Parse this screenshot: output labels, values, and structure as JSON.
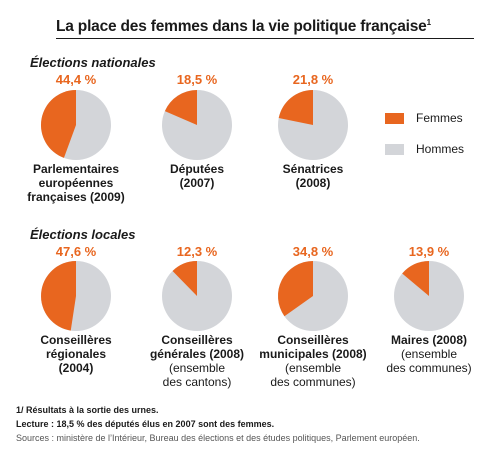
{
  "title": "La place des femmes dans la vie politique française",
  "title_note": "1",
  "sections": {
    "national": "Élections nationales",
    "local": "Élections locales"
  },
  "legend": [
    {
      "label": "Femmes",
      "color": "#e8661f"
    },
    {
      "label": "Hommes",
      "color": "#d3d5d9"
    }
  ],
  "chart_data": {
    "type": "pie",
    "unit": "%",
    "series_names": [
      "Femmes",
      "Hommes"
    ],
    "groups": [
      {
        "section": "Élections nationales",
        "pies": [
          {
            "label": "Parlementaires européennes françaises (2009)",
            "caption_lines": [
              "Parlementaires",
              "européennes",
              "françaises (2009)"
            ],
            "sub_lines": [],
            "value_label": "44,4 %",
            "femmes": 44.4,
            "hommes": 55.6
          },
          {
            "label": "Députées (2007)",
            "caption_lines": [
              "Députées",
              "(2007)"
            ],
            "sub_lines": [],
            "value_label": "18,5 %",
            "femmes": 18.5,
            "hommes": 81.5
          },
          {
            "label": "Sénatrices (2008)",
            "caption_lines": [
              "Sénatrices",
              "(2008)"
            ],
            "sub_lines": [],
            "value_label": "21,8 %",
            "femmes": 21.8,
            "hommes": 78.2
          }
        ]
      },
      {
        "section": "Élections locales",
        "pies": [
          {
            "label": "Conseillères régionales (2004)",
            "caption_lines": [
              "Conseillères",
              "régionales",
              "(2004)"
            ],
            "sub_lines": [],
            "value_label": "47,6 %",
            "femmes": 47.6,
            "hommes": 52.4
          },
          {
            "label": "Conseillères générales (2008) (ensemble des cantons)",
            "caption_lines": [
              "Conseillères",
              "générales (2008)"
            ],
            "sub_lines": [
              "(ensemble",
              "des cantons)"
            ],
            "value_label": "12,3 %",
            "femmes": 12.3,
            "hommes": 87.7
          },
          {
            "label": "Conseillères municipales (2008) (ensemble des communes)",
            "caption_lines": [
              "Conseillères",
              "municipales (2008)"
            ],
            "sub_lines": [
              "(ensemble",
              "des communes)"
            ],
            "value_label": "34,8 %",
            "femmes": 34.8,
            "hommes": 65.2
          },
          {
            "label": "Maires (2008) (ensemble des communes)",
            "caption_lines": [
              "Maires (2008)"
            ],
            "sub_lines": [
              "(ensemble",
              "des communes)"
            ],
            "value_label": "13,9 %",
            "femmes": 13.9,
            "hommes": 86.1
          }
        ]
      }
    ]
  },
  "footnotes": {
    "note1": "1/ Résultats à la sortie des urnes.",
    "reading": "Lecture : 18,5 % des députés élus en 2007 sont des femmes.",
    "sources": "Sources : ministère de l’Intérieur, Bureau des élections et des études politiques, Parlement européen."
  }
}
